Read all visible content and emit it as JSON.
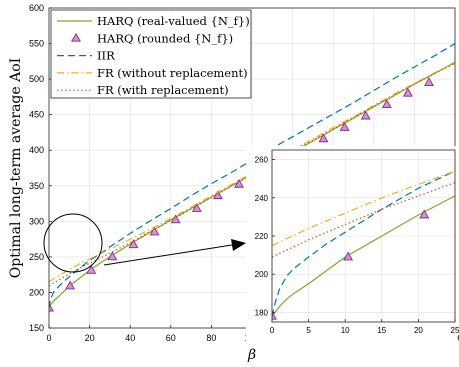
{
  "chart_data": {
    "type": "line",
    "xlabel": "β",
    "ylabel": "Optimal long-term average AoI",
    "xlim": [
      0,
      200
    ],
    "ylim": [
      150,
      600
    ],
    "xticks": [
      0,
      20,
      40,
      60,
      80,
      100,
      120,
      140,
      160,
      180,
      200
    ],
    "yticks": [
      150,
      200,
      250,
      300,
      350,
      400,
      450,
      500,
      550,
      600
    ],
    "grid": true,
    "legend_position": "top-left",
    "series": [
      {
        "name": "HARQ (real-valued {N_f})",
        "color": "#77ac30",
        "style": "solid",
        "x": [
          0,
          1,
          2,
          3,
          5,
          7.5,
          10,
          15,
          20,
          25,
          30,
          40,
          50,
          60,
          70,
          80,
          90,
          100,
          110,
          120,
          130,
          140,
          150,
          160,
          170,
          180,
          190,
          200
        ],
        "y": [
          178,
          183,
          187,
          190,
          195,
          202,
          209,
          220,
          231,
          241,
          250,
          268,
          285,
          302,
          318,
          334,
          350,
          366,
          382,
          397,
          413,
          429,
          445,
          461,
          477,
          493,
          508,
          524
        ]
      },
      {
        "name": "HARQ (rounded {N_f})",
        "color": "#7e2f8e",
        "fill": "#d98ed6",
        "style": "marker",
        "marker": "triangle",
        "x": [
          0,
          10.4,
          20.8,
          31.2,
          41.6,
          52,
          62.4,
          72.8,
          83.2,
          93.6,
          104,
          114.4,
          124.8,
          135.2,
          145.6,
          156,
          166.4,
          176.8,
          187.2
        ],
        "y": [
          178,
          209,
          231,
          250,
          267,
          285,
          302,
          318,
          336,
          352,
          368,
          384,
          400,
          416,
          432,
          448,
          464,
          480,
          495
        ]
      },
      {
        "name": "IIR",
        "color": "#0072bd",
        "style": "dashed",
        "x": [
          0,
          0.5,
          1,
          2,
          3,
          5,
          7.5,
          10,
          15,
          20,
          25,
          30,
          40,
          50,
          60,
          70,
          80,
          90,
          100,
          110,
          120,
          130,
          140,
          150,
          160,
          170,
          180,
          190,
          200
        ],
        "y": [
          178,
          186,
          192,
          199,
          203,
          209,
          216,
          222,
          234,
          245,
          254,
          264,
          283,
          301,
          318,
          336,
          353,
          369,
          386,
          403,
          419,
          435,
          451,
          467,
          484,
          501,
          517,
          533,
          550
        ]
      },
      {
        "name": "FR (without replacement)",
        "color": "#edb120",
        "style": "dashdot",
        "x": [
          0,
          5,
          10,
          15,
          20,
          25,
          30,
          40,
          50,
          60,
          70,
          80,
          90,
          100,
          110,
          120,
          130,
          140,
          150,
          160,
          170,
          180,
          190,
          200
        ],
        "y": [
          215,
          224,
          232,
          240,
          247,
          254,
          261,
          275,
          289,
          304,
          320,
          336,
          352,
          368,
          384,
          400,
          416,
          432,
          447,
          463,
          479,
          494,
          509,
          523
        ]
      },
      {
        "name": "FR (with replacement)",
        "color": "#d95319",
        "style": "dotted",
        "x": [
          0,
          5,
          10,
          15,
          20,
          25,
          30,
          40,
          50,
          60,
          70,
          80,
          90,
          100,
          110,
          120,
          130,
          140,
          150,
          160,
          170,
          180,
          190,
          200
        ],
        "y": [
          209,
          218,
          226,
          234,
          241,
          248,
          255,
          270,
          286,
          301,
          317,
          333,
          350,
          366,
          382,
          398,
          414,
          430,
          446,
          462,
          477,
          493,
          508,
          522
        ]
      }
    ],
    "inset": {
      "xlim": [
        0,
        25
      ],
      "ylim": [
        175,
        265
      ],
      "xticks": [
        0,
        5,
        10,
        15,
        20,
        25
      ],
      "yticks": [
        180,
        200,
        220,
        240,
        260
      ],
      "grid": true
    }
  }
}
